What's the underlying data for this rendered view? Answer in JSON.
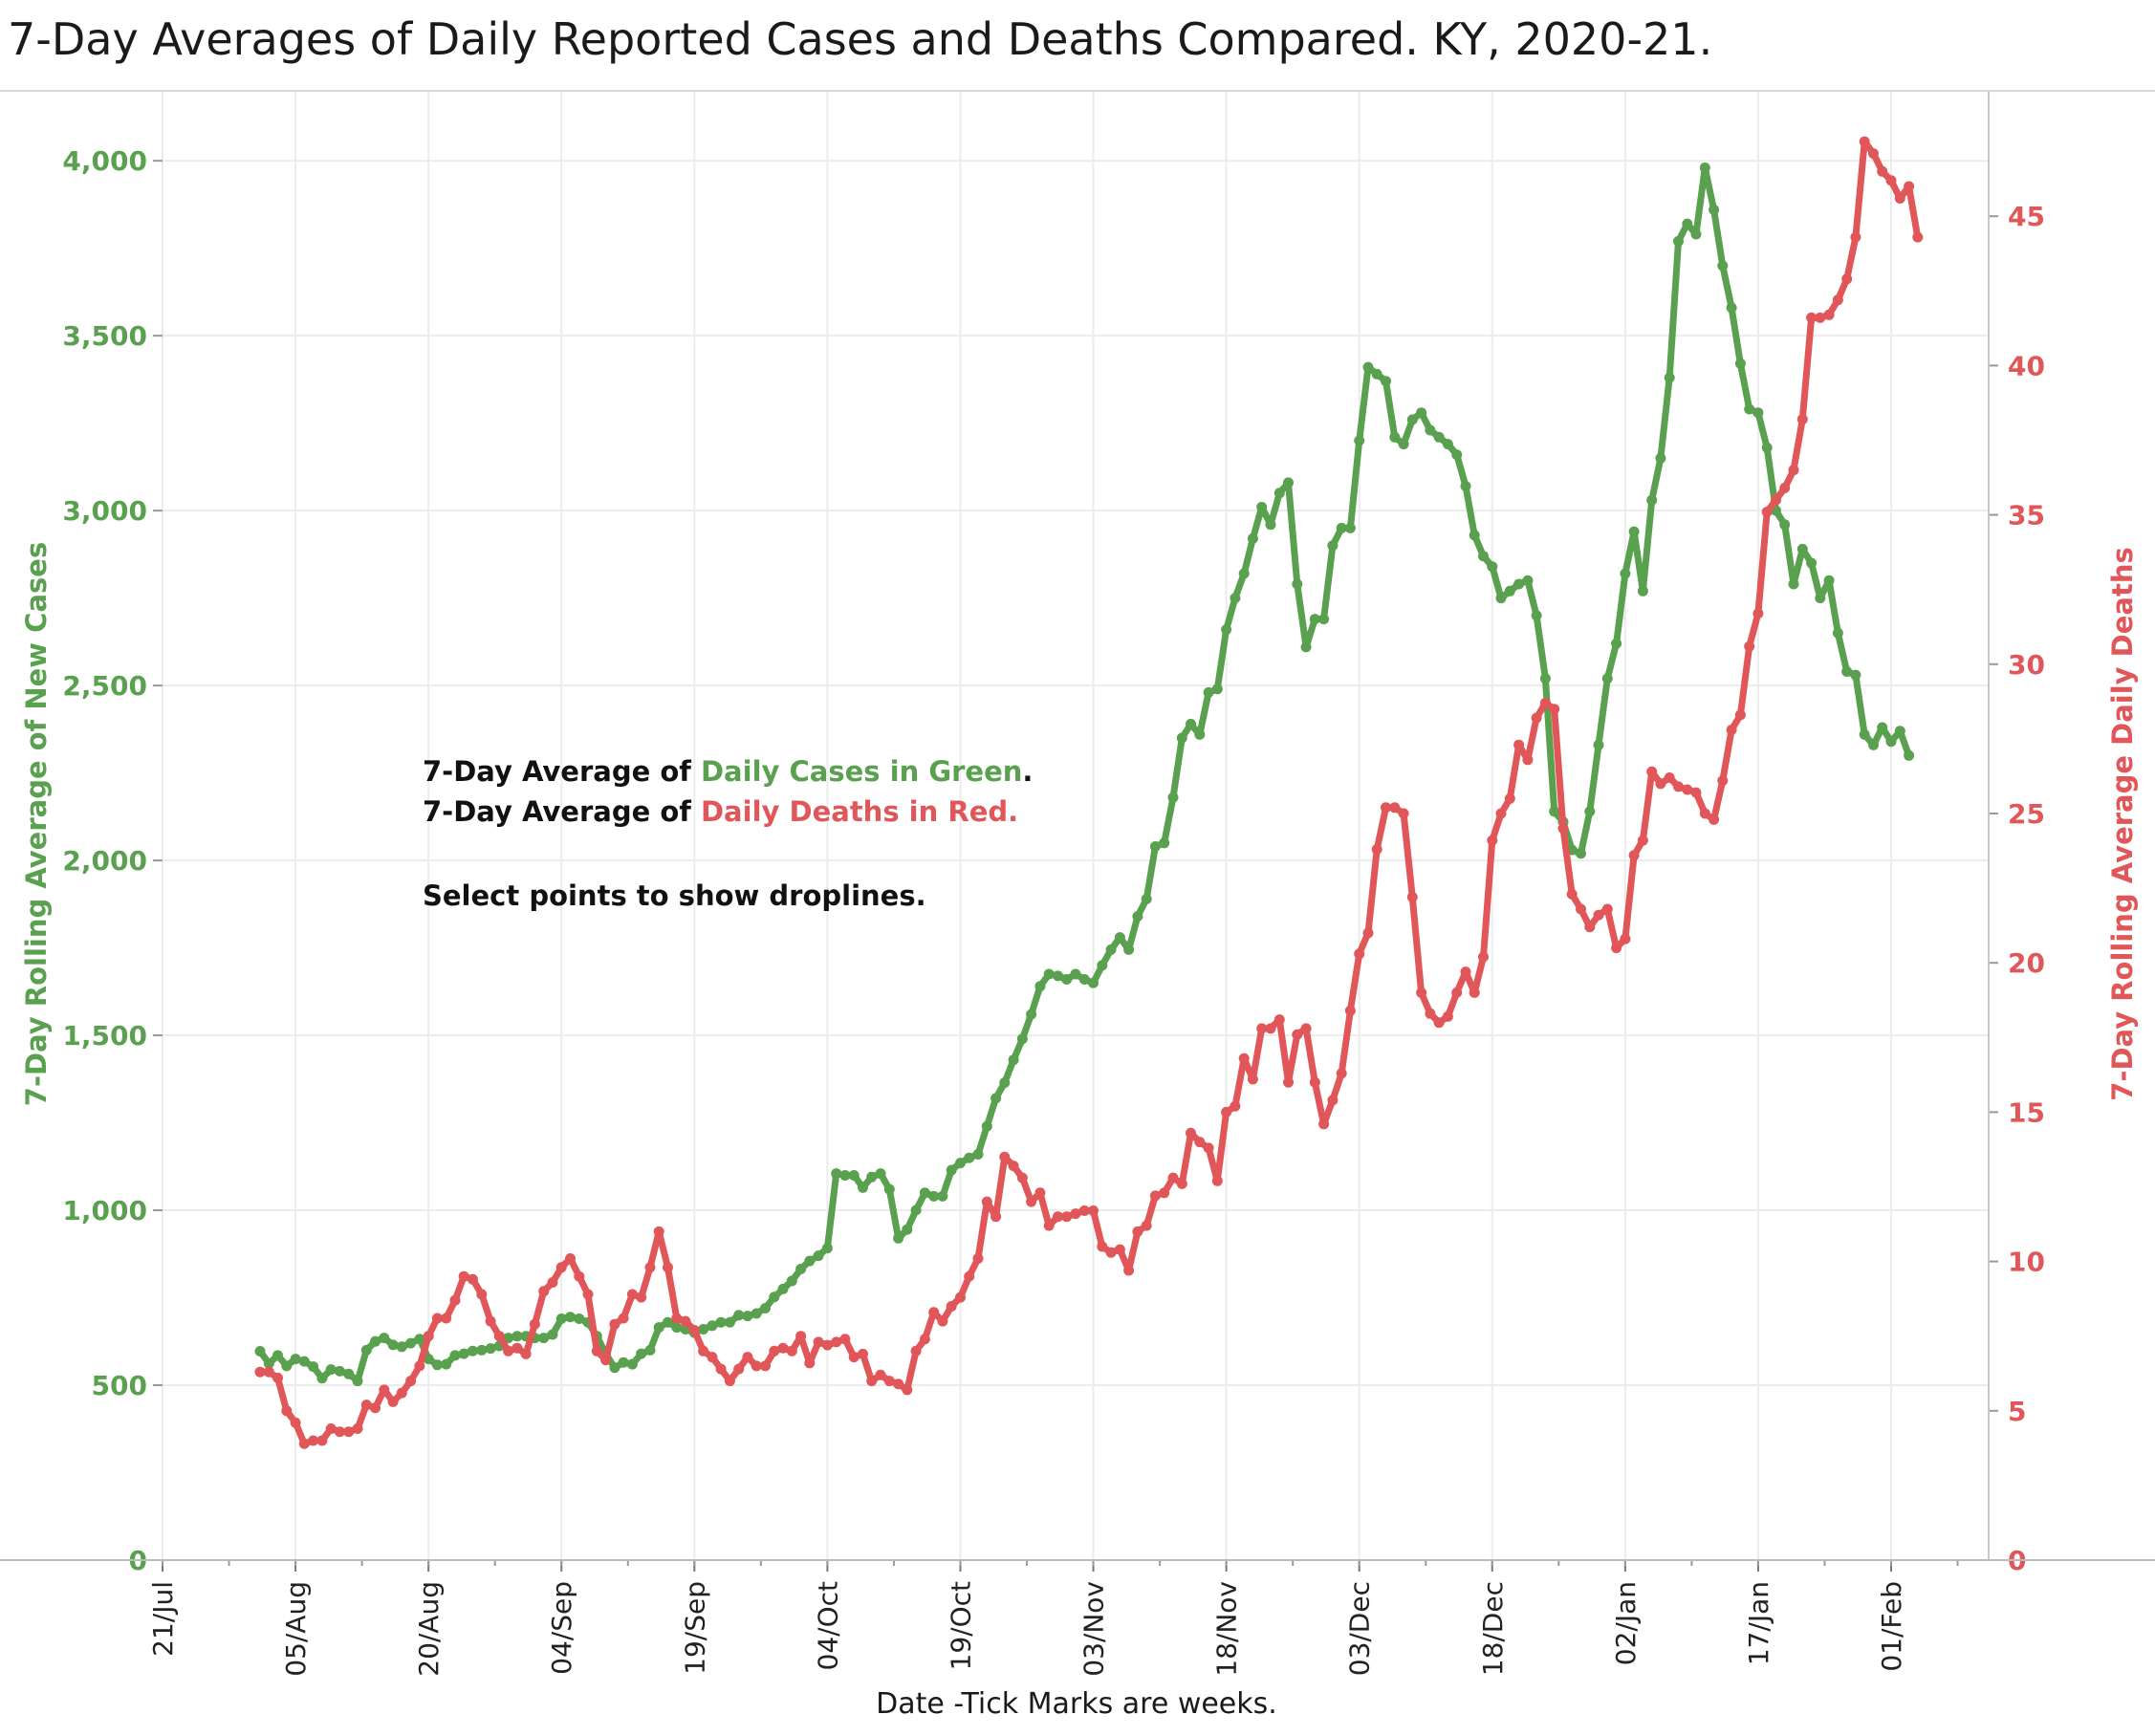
{
  "chart_data": {
    "type": "line",
    "title": "7-Day Averages of Daily Reported Cases and Deaths Compared. KY, 2020-21.",
    "xlabel": "Date  -Tick Marks are weeks.",
    "ylabel_left": "7-Day Rolling  Average of New Cases",
    "ylabel_right": "7-Day Rolling Average Daily  Deaths",
    "ylim_left": [
      0,
      4200
    ],
    "ylim_right": [
      0,
      49.2
    ],
    "xlim": [
      "2020-07-21",
      "2021-02-12"
    ],
    "grid": true,
    "x_ticks": [
      {
        "date": "2020-07-21",
        "label": "21/Jul"
      },
      {
        "date": "2020-08-05",
        "label": "05/Aug"
      },
      {
        "date": "2020-08-20",
        "label": "20/Aug"
      },
      {
        "date": "2020-09-04",
        "label": "04/Sep"
      },
      {
        "date": "2020-09-19",
        "label": "19/Sep"
      },
      {
        "date": "2020-10-04",
        "label": "04/Oct"
      },
      {
        "date": "2020-10-19",
        "label": "19/Oct"
      },
      {
        "date": "2020-11-03",
        "label": "03/Nov"
      },
      {
        "date": "2020-11-18",
        "label": "18/Nov"
      },
      {
        "date": "2020-12-03",
        "label": "03/Dec"
      },
      {
        "date": "2020-12-18",
        "label": "18/Dec"
      },
      {
        "date": "2021-01-02",
        "label": "02/Jan"
      },
      {
        "date": "2021-01-17",
        "label": "17/Jan"
      },
      {
        "date": "2021-02-01",
        "label": "01/Feb"
      }
    ],
    "y_ticks_left": [
      {
        "value": 0,
        "label": "0"
      },
      {
        "value": 500,
        "label": "500"
      },
      {
        "value": 1000,
        "label": "1,000"
      },
      {
        "value": 1500,
        "label": "1,500"
      },
      {
        "value": 2000,
        "label": "2,000"
      },
      {
        "value": 2500,
        "label": "2,500"
      },
      {
        "value": 3000,
        "label": "3,000"
      },
      {
        "value": 3500,
        "label": "3,500"
      },
      {
        "value": 4000,
        "label": "4,000"
      }
    ],
    "y_ticks_right": [
      {
        "value": 0,
        "label": "0"
      },
      {
        "value": 5,
        "label": "5"
      },
      {
        "value": 10,
        "label": "10"
      },
      {
        "value": 15,
        "label": "15"
      },
      {
        "value": 20,
        "label": "20"
      },
      {
        "value": 25,
        "label": "25"
      },
      {
        "value": 30,
        "label": "30"
      },
      {
        "value": 35,
        "label": "35"
      },
      {
        "value": 40,
        "label": "40"
      },
      {
        "value": 45,
        "label": "45"
      }
    ],
    "series": [
      {
        "axis": "left",
        "color": "#59a14f",
        "start_date": "2020-08-01",
        "values": [
          597,
          562,
          585,
          555,
          575,
          568,
          553,
          520,
          545,
          540,
          532,
          512,
          600,
          625,
          635,
          615,
          610,
          620,
          632,
          575,
          558,
          560,
          585,
          590,
          598,
          600,
          605,
          612,
          635,
          640,
          640,
          635,
          635,
          645,
          690,
          695,
          690,
          680,
          640,
          590,
          550,
          565,
          560,
          590,
          600,
          665,
          680,
          665,
          660,
          650,
          660,
          670,
          680,
          680,
          700,
          698,
          705,
          720,
          752,
          775,
          798,
          832,
          855,
          870,
          892,
          1105,
          1100,
          1100,
          1065,
          1095,
          1105,
          1060,
          920,
          945,
          1000,
          1050,
          1040,
          1040,
          1115,
          1135,
          1150,
          1160,
          1240,
          1320,
          1365,
          1430,
          1490,
          1560,
          1640,
          1675,
          1670,
          1660,
          1675,
          1660,
          1650,
          1700,
          1745,
          1780,
          1745,
          1840,
          1890,
          2040,
          2050,
          2180,
          2350,
          2390,
          2360,
          2480,
          2490,
          2660,
          2750,
          2820,
          2920,
          3010,
          2960,
          3050,
          3080,
          2790,
          2610,
          2690,
          2690,
          2900,
          2950,
          2950,
          3200,
          3410,
          3390,
          3370,
          3210,
          3190,
          3260,
          3280,
          3230,
          3210,
          3190,
          3160,
          3070,
          2930,
          2870,
          2840,
          2750,
          2770,
          2790,
          2800,
          2700,
          2520,
          2140,
          2110,
          2030,
          2020,
          2140,
          2330,
          2520,
          2620,
          2820,
          2940,
          2770,
          3030,
          3150,
          3380,
          3770,
          3820,
          3790,
          3980,
          3860,
          3700,
          3580,
          3420,
          3290,
          3280,
          3180,
          3000,
          2960,
          2790,
          2890,
          2850,
          2750,
          2800,
          2650,
          2540,
          2530,
          2360,
          2330,
          2380,
          2340,
          2370,
          2300
        ]
      },
      {
        "axis": "right",
        "color": "#e15759",
        "start_date": "2020-08-01",
        "values": [
          6.3,
          6.3,
          6.1,
          5.0,
          4.6,
          3.9,
          4.0,
          4.0,
          4.4,
          4.3,
          4.3,
          4.4,
          5.2,
          5.1,
          5.7,
          5.3,
          5.6,
          6.0,
          6.5,
          7.5,
          8.1,
          8.1,
          8.7,
          9.5,
          9.4,
          8.9,
          8.0,
          7.5,
          7.0,
          7.1,
          6.9,
          7.9,
          9.0,
          9.3,
          9.8,
          10.1,
          9.5,
          8.9,
          7.0,
          6.7,
          7.9,
          8.1,
          8.9,
          8.8,
          9.8,
          11.0,
          9.8,
          8.1,
          8.0,
          7.7,
          7.0,
          6.8,
          6.4,
          6.0,
          6.4,
          6.8,
          6.5,
          6.5,
          7.0,
          7.1,
          7.0,
          7.5,
          6.6,
          7.3,
          7.2,
          7.3,
          7.4,
          6.8,
          6.9,
          6.0,
          6.2,
          6.0,
          5.9,
          5.7,
          7.0,
          7.4,
          8.3,
          8.0,
          8.5,
          8.8,
          9.5,
          10.1,
          12.0,
          11.5,
          13.5,
          13.2,
          12.8,
          12.0,
          12.3,
          11.2,
          11.5,
          11.5,
          11.6,
          11.7,
          11.7,
          10.5,
          10.3,
          10.4,
          9.7,
          11.0,
          11.2,
          12.2,
          12.3,
          12.8,
          12.6,
          14.3,
          14.0,
          13.8,
          12.7,
          15.0,
          15.2,
          16.8,
          16.1,
          17.8,
          17.8,
          18.1,
          16.0,
          17.6,
          17.8,
          16.0,
          14.6,
          15.4,
          16.3,
          18.4,
          20.3,
          21.0,
          23.8,
          25.2,
          25.2,
          25.0,
          22.2,
          19.0,
          18.3,
          18.0,
          18.2,
          19.0,
          19.7,
          19.0,
          20.2,
          24.1,
          25.0,
          25.5,
          27.3,
          26.8,
          28.2,
          28.7,
          28.5,
          24.5,
          22.3,
          21.8,
          21.2,
          21.6,
          21.8,
          20.5,
          20.8,
          23.6,
          24.1,
          26.4,
          26.0,
          26.2,
          25.9,
          25.8,
          25.7,
          25.0,
          24.8,
          26.1,
          27.8,
          28.3,
          30.6,
          31.7,
          35.1,
          35.5,
          35.9,
          36.5,
          38.2,
          41.6,
          41.6,
          41.7,
          42.2,
          42.9,
          44.3,
          47.5,
          47.1,
          46.5,
          46.2,
          45.6,
          46.0,
          44.3
        ]
      }
    ],
    "annotation": {
      "line1_prefix": "7-Day Average of ",
      "line1_colored": "Daily Cases in Green",
      "line1_suffix": ".",
      "line2_prefix": "7-Day Average of ",
      "line2_colored": "Daily Deaths in Red.",
      "line3": "Select points to show droplines."
    }
  }
}
